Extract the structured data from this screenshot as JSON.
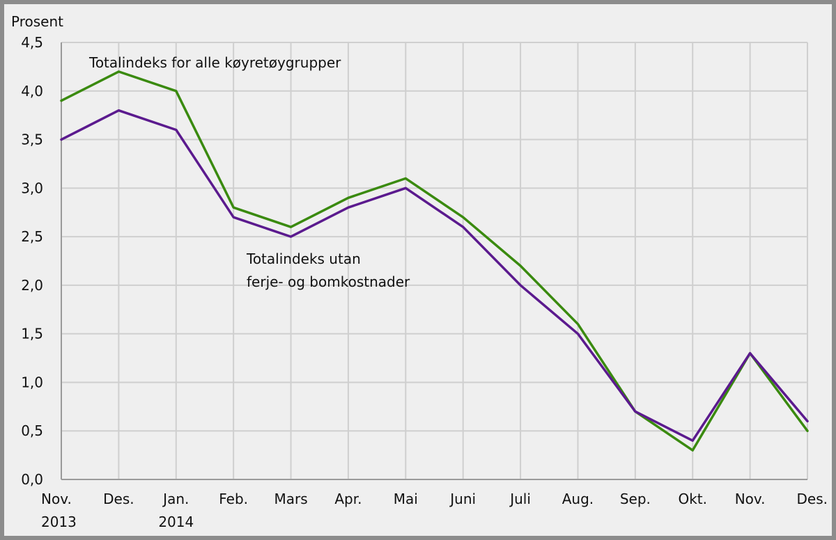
{
  "chart_data": {
    "type": "line",
    "ylabel": "Prosent",
    "ylim": [
      0,
      4.5
    ],
    "yticks": [
      "0,0",
      "0,5",
      "1,0",
      "1,5",
      "2,0",
      "2,5",
      "3,0",
      "3,5",
      "4,0",
      "4,5"
    ],
    "categories": [
      [
        "Nov.",
        "2013"
      ],
      [
        "Des."
      ],
      [
        "Jan.",
        "2014"
      ],
      [
        "Feb."
      ],
      [
        "Mars"
      ],
      [
        "Apr."
      ],
      [
        "Mai"
      ],
      [
        "Juni"
      ],
      [
        "Juli"
      ],
      [
        "Aug."
      ],
      [
        "Sep."
      ],
      [
        "Okt."
      ],
      [
        "Nov."
      ],
      [
        "Des."
      ]
    ],
    "grid": true,
    "series": [
      {
        "name": "Totalindeks for alle køyretøygrupper",
        "color": "#3a8a0f",
        "values": [
          3.9,
          4.2,
          4.0,
          2.8,
          2.6,
          2.9,
          3.1,
          2.7,
          2.2,
          1.6,
          0.7,
          0.3,
          1.3,
          0.5
        ]
      },
      {
        "name": "Totalindeks utan ferje- og bomkostnader",
        "color": "#5b1a8e",
        "values": [
          3.5,
          3.8,
          3.6,
          2.7,
          2.5,
          2.8,
          3.0,
          2.6,
          2.0,
          1.5,
          0.7,
          0.4,
          1.3,
          0.6
        ]
      }
    ],
    "annotations": [
      {
        "lines": [
          "Totalindeks for alle køyretøygrupper"
        ]
      },
      {
        "lines": [
          "Totalindeks utan",
          "ferje- og bomkostnader"
        ]
      }
    ]
  }
}
